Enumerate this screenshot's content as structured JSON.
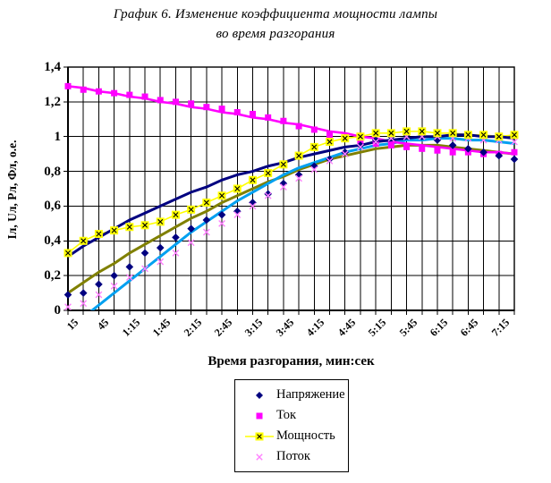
{
  "chart": {
    "title_line1": "График 6. Изменение коэффициента мощности лампы",
    "title_line2": "во время разгорания",
    "x_axis_title": "Время разгорания, мин:сек",
    "y_axis_title": "Iл, Uл, Pл, Фл,  о.е."
  },
  "colors": {
    "napryazhenie_marker": "#000080",
    "napryazhenie_trend": "#808000",
    "tok_marker": "#FF00FF",
    "tok_trend": "#FF00FF",
    "moshchnost_marker": "#FFFF00",
    "moshchnost_trend": "#000080",
    "potok_marker": "#FF80FF",
    "potok_trend": "#00A0F0",
    "grid": "#000000",
    "text": "#000000",
    "background": "#FFFFFF"
  },
  "chart_data": {
    "type": "scatter",
    "title": "График 6. Изменение коэффициента мощности лампы во время разгорания",
    "xlabel": "Время разгорания, мин:сек",
    "ylabel": "Iл, Uл, Pл, Фл, о.е.",
    "ylim": [
      0,
      1.4
    ],
    "grid": true,
    "legend_position": "bottom",
    "y_tick_values": [
      0,
      0.2,
      0.4,
      0.6,
      0.8,
      1.0,
      1.2,
      1.4
    ],
    "y_tick_labels": [
      "0",
      "0,2",
      "0,4",
      "0,6",
      "0,8",
      "1",
      "1,2",
      "1,4"
    ],
    "x_categories": [
      "15",
      "30",
      "45",
      "1:00",
      "1:15",
      "1:30",
      "1:45",
      "2:00",
      "2:15",
      "2:30",
      "2:45",
      "3:00",
      "3:15",
      "3:30",
      "3:45",
      "4:00",
      "4:15",
      "4:30",
      "4:45",
      "5:00",
      "5:15",
      "5:30",
      "5:45",
      "6:00",
      "6:15",
      "6:30",
      "6:45",
      "7:00",
      "7:15",
      "7:30"
    ],
    "x_tick_labels_shown": [
      "15",
      "45",
      "1:15",
      "1:45",
      "2:15",
      "2:45",
      "3:15",
      "3:45",
      "4:15",
      "4:45",
      "5:15",
      "5:45",
      "6:15",
      "6:45",
      "7:15"
    ],
    "series": [
      {
        "name": "Напряжение",
        "marker": "diamond",
        "color": "#000080",
        "values": [
          0.09,
          0.1,
          0.15,
          0.2,
          0.25,
          0.33,
          0.36,
          0.42,
          0.47,
          0.52,
          0.55,
          0.57,
          0.62,
          0.67,
          0.73,
          0.78,
          0.83,
          0.87,
          0.91,
          0.95,
          0.98,
          1.0,
          1.01,
          1.0,
          0.98,
          0.95,
          0.93,
          0.91,
          0.89,
          0.87
        ],
        "trend_color": "#808000",
        "trend": [
          0.1,
          0.16,
          0.22,
          0.27,
          0.33,
          0.38,
          0.43,
          0.48,
          0.53,
          0.57,
          0.62,
          0.66,
          0.7,
          0.74,
          0.77,
          0.81,
          0.84,
          0.87,
          0.89,
          0.91,
          0.93,
          0.94,
          0.95,
          0.95,
          0.95,
          0.94,
          0.93,
          0.92,
          0.91,
          0.9
        ]
      },
      {
        "name": "Ток",
        "marker": "square",
        "color": "#FF00FF",
        "values": [
          1.29,
          1.27,
          1.26,
          1.25,
          1.24,
          1.23,
          1.21,
          1.2,
          1.19,
          1.17,
          1.16,
          1.14,
          1.13,
          1.11,
          1.09,
          1.06,
          1.04,
          1.01,
          0.99,
          0.97,
          0.96,
          0.95,
          0.94,
          0.93,
          0.92,
          0.91,
          0.91,
          0.9,
          0.9,
          0.91
        ],
        "trend_color": "#FF00FF",
        "trend": [
          1.29,
          1.28,
          1.26,
          1.25,
          1.23,
          1.22,
          1.2,
          1.19,
          1.17,
          1.16,
          1.14,
          1.13,
          1.11,
          1.1,
          1.08,
          1.07,
          1.05,
          1.03,
          1.02,
          1.0,
          0.99,
          0.97,
          0.96,
          0.95,
          0.94,
          0.93,
          0.92,
          0.91,
          0.91,
          0.9
        ]
      },
      {
        "name": "Мощность",
        "marker": "x-square",
        "color": "#FFFF00",
        "has_line": true,
        "values": [
          0.33,
          0.4,
          0.44,
          0.46,
          0.48,
          0.49,
          0.51,
          0.55,
          0.58,
          0.62,
          0.66,
          0.7,
          0.75,
          0.79,
          0.84,
          0.89,
          0.94,
          0.97,
          0.99,
          1.0,
          1.02,
          1.02,
          1.03,
          1.03,
          1.02,
          1.02,
          1.01,
          1.01,
          1.0,
          1.01
        ],
        "trend_color": "#000080",
        "trend": [
          0.31,
          0.37,
          0.42,
          0.47,
          0.52,
          0.56,
          0.6,
          0.64,
          0.68,
          0.71,
          0.75,
          0.78,
          0.8,
          0.83,
          0.85,
          0.88,
          0.9,
          0.92,
          0.94,
          0.95,
          0.97,
          0.98,
          0.99,
          1.0,
          1.0,
          1.01,
          1.01,
          1.0,
          1.0,
          0.99
        ]
      },
      {
        "name": "Поток",
        "marker": "x",
        "color": "#FF80FF",
        "values": [
          0.02,
          0.04,
          0.09,
          0.14,
          0.19,
          0.24,
          0.28,
          0.33,
          0.39,
          0.45,
          0.5,
          0.55,
          0.6,
          0.66,
          0.71,
          0.76,
          0.81,
          0.86,
          0.9,
          0.94,
          0.97,
          0.99,
          1.0,
          1.0,
          1.0,
          0.99,
          0.99,
          0.98,
          0.98,
          0.97
        ],
        "trend_color": "#00A0F0",
        "trend": [
          -0.1,
          -0.04,
          0.03,
          0.1,
          0.17,
          0.24,
          0.31,
          0.38,
          0.45,
          0.51,
          0.57,
          0.63,
          0.68,
          0.73,
          0.78,
          0.82,
          0.85,
          0.88,
          0.91,
          0.93,
          0.95,
          0.96,
          0.98,
          0.98,
          0.99,
          0.99,
          0.98,
          0.98,
          0.97,
          0.96
        ]
      }
    ]
  }
}
